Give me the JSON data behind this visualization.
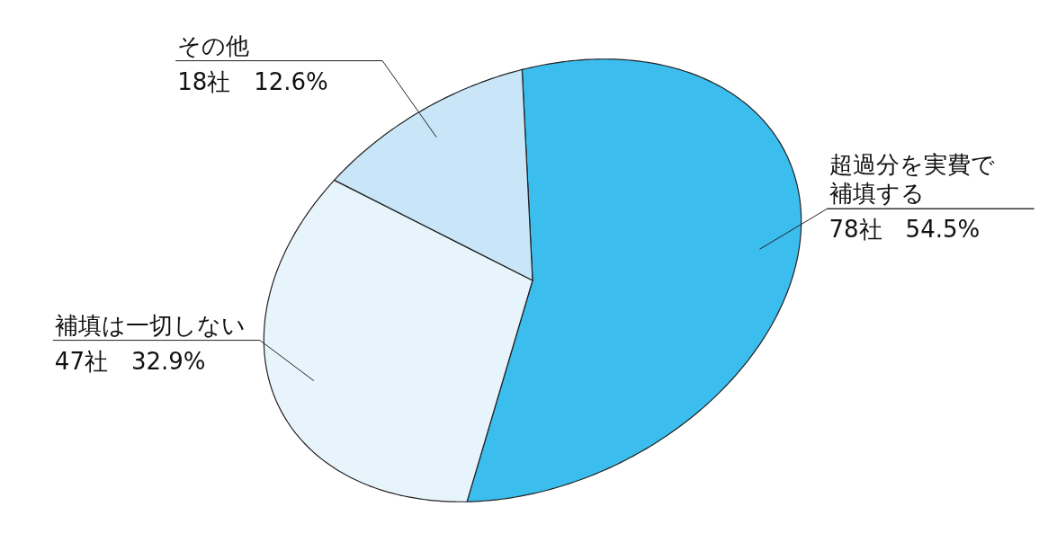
{
  "chart_data": {
    "type": "pie",
    "categories": [
      "超過分を実費で補填する",
      "補填は一切しない",
      "その他"
    ],
    "values": [
      78,
      47,
      18
    ],
    "value_labels": [
      "78社　54.5%",
      "47社　32.9%",
      "18社　12.6%"
    ],
    "colors": [
      "#3bbdee",
      "#e8f4fc",
      "#c8e6f8"
    ]
  }
}
